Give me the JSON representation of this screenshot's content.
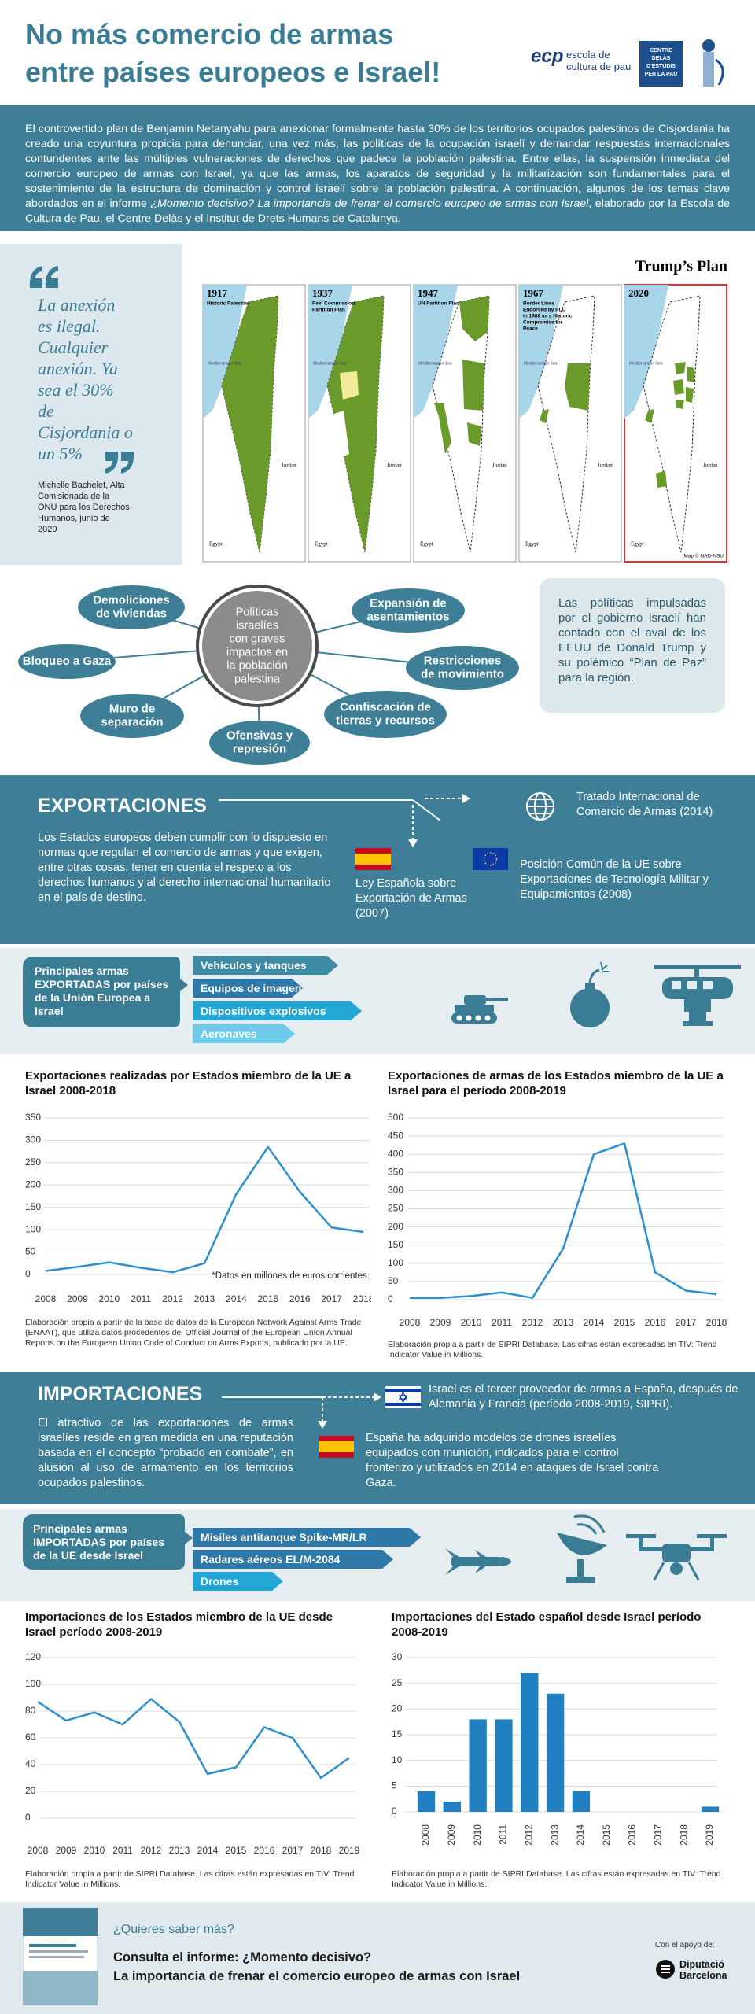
{
  "header": {
    "title_lines": [
      "No más comercio de armas",
      "entre países europeos e Israel!"
    ],
    "ecp": "ecp",
    "ecp_name": [
      "escola de",
      "cultura de pau"
    ],
    "delas": [
      "CENTRE DELÀS",
      "D'ESTUDIS",
      "PER LA PAU"
    ]
  },
  "intro": {
    "text_1": "El controvertido plan de Benjamin Netanyahu para anexionar formalmente hasta 30% de los territorios ocupados palestinos de Cisjordania ha creado una coyuntura propicia para denunciar, una vez más, las políticas de la ocupación israelí y demandar respuestas internacionales contundentes ante las múltiples vulneraciones de derechos que padece la población palestina. Entre ellas, la suspensión inmediata del comercio europeo de armas con Israel, ya que las armas, los aparatos de seguridad y la militarización son fundamentales para el sostenimiento de la estructura de dominación y control israelí sobre la población palestina. A continuación, algunos de los temas clave abordados en el informe ",
    "report": "¿Momento decisivo? La importancia de frenar el comercio europeo de armas con Israel",
    "text_2": ", elaborado por la Escola de Cultura de Pau, el Centre Delàs y el Institut de Drets Humans de Catalunya."
  },
  "quote": {
    "text": "La anexión es ilegal. Cualquier anexión. Ya sea el 30% de Cisjordania o un 5%",
    "author": "Michelle Bachelet, Alta Comisionada de la ONU para los Derechos Humanos, junio de 2020"
  },
  "maps": {
    "title": "Trump’s Plan",
    "panels": [
      {
        "year": "1917",
        "caption": [
          "Historic Palestine"
        ]
      },
      {
        "year": "1937",
        "caption": [
          "Peel Commission",
          "Partition Plan"
        ]
      },
      {
        "year": "1947",
        "caption": [
          "UN Partition Plan"
        ]
      },
      {
        "year": "1967",
        "caption": [
          "Border Lines",
          "Endorsed by PLO",
          "in 1988 as a Historic",
          "Compromise for",
          "Peace"
        ]
      },
      {
        "year": "2020",
        "caption": []
      }
    ],
    "labels": {
      "sea": "Mediterranean Sea",
      "jordan": "Jordan",
      "egypt": "Egypt"
    },
    "credit": "Map © NAD-NSU"
  },
  "policies": {
    "center": [
      "Políticas",
      "israelíes",
      "con graves",
      "impactos en",
      "la población",
      "palestina"
    ],
    "items": [
      [
        "Demoliciones",
        "de viviendas"
      ],
      [
        "Bloqueo a Gaza"
      ],
      [
        "Muro de",
        "separación"
      ],
      [
        "Ofensivas y",
        "represión"
      ],
      [
        "Confiscación de",
        "tierras y recursos"
      ],
      [
        "Restricciones",
        "de movimiento"
      ],
      [
        "Expansión de",
        "asentamientos"
      ]
    ],
    "note": "Las políticas impulsadas por el gobierno israelí han contado con el aval de los EEUU de Donald Trump y su polémico “Plan de Paz” para la región."
  },
  "exports": {
    "heading": "EXPORTACIONES",
    "text": "Los Estados europeos deben cumplir con lo dispuesto en normas que regulan el comercio de armas y que exigen, entre otras cosas, tener en cuenta el respeto a los derechos humanos y al derecho internacional humanitario en el país de destino.",
    "treaty": "Tratado Internacional de Comercio de Armas (2014)",
    "eu": "Posición Común de la UE sobre Exportaciones de Tecnología Militar y Equipamientos (2008)",
    "spain": "Ley Española sobre Exportación de Armas (2007)"
  },
  "exported_arms": {
    "label": "Principales armas EXPORTADAS por países de la Unión Europea a Israel",
    "items": [
      "Vehículos y tanques",
      "Equipos de imagen",
      "Dispositivos explosivos",
      "Aeronaves"
    ]
  },
  "imports": {
    "heading": "IMPORTACIONES",
    "text": "El atractivo de las exportaciones de armas israelíes reside en gran medida en una reputación basada en el concepto “probado en combate”, en alusión al uso de armamento en los territorios ocupados palestinos.",
    "fact_1": "Israel es el tercer proveedor de armas a España, después de Alemania y Francia (período 2008-2019, SIPRI).",
    "fact_2": "España ha adquirido modelos de drones israelíes equipados con munición, indicados para el control fronterizo y utilizados en 2014 en ataques de Israel contra Gaza."
  },
  "imported_arms": {
    "label": "Principales armas IMPORTADAS por países de la UE desde Israel",
    "items": [
      "Misiles antitanque Spike-MR/LR",
      "Radares aéreos EL/M-2084",
      "Drones"
    ]
  },
  "chart_data": [
    {
      "type": "line",
      "title": "Exportaciones  realizadas por Estados miembro de la UE a Israel 2008-2018",
      "categories": [
        "2008",
        "2009",
        "2010",
        "2011",
        "2012",
        "2013",
        "2014",
        "2015",
        "2016",
        "2017",
        "2018"
      ],
      "values": [
        8,
        17,
        27,
        15,
        5,
        25,
        180,
        285,
        185,
        105,
        95
      ],
      "color": "#2b8fd0",
      "ylim": [
        0,
        350
      ],
      "yticks": [
        0,
        50,
        100,
        150,
        200,
        250,
        300,
        350
      ],
      "grid": true,
      "annotation": "*Datos en millones de euros corrientes.",
      "note": "Elaboración propia a partir de la base de datos de la European Network Against Arms Trade (ENAAT), que utiliza datos procedentes del Official Journal of the European Union Annual Reports on the European Union Code of Conduct on Arms Exports, publicado por la UE."
    },
    {
      "type": "line",
      "title": "Exportaciones de armas de los Estados miembro de la UE a Israel para el período 2008-2019",
      "categories": [
        "2008",
        "2009",
        "2010",
        "2011",
        "2012",
        "2013",
        "2014",
        "2015",
        "2016",
        "2017",
        "2018"
      ],
      "values": [
        5,
        5,
        10,
        20,
        5,
        140,
        400,
        430,
        75,
        25,
        15
      ],
      "color": "#2b8fd0",
      "ylim": [
        0,
        500
      ],
      "yticks": [
        0,
        50,
        100,
        150,
        200,
        250,
        300,
        350,
        400,
        450,
        500
      ],
      "grid": true,
      "note": "Elaboración propia a partir de SIPRI Database. Las cifras están expresadas en TIV: Trend Indicator Value in Millions."
    },
    {
      "type": "line",
      "title": "Importaciones de los Estados miembro de la UE desde Israel período 2008-2019",
      "categories": [
        "2008",
        "2009",
        "2010",
        "2011",
        "2012",
        "2013",
        "2014",
        "2015",
        "2016",
        "2017",
        "2018",
        "2019"
      ],
      "values": [
        87,
        73,
        79,
        70,
        89,
        72,
        33,
        38,
        68,
        60,
        30,
        45
      ],
      "color": "#2b8fd0",
      "ylim": [
        0,
        120
      ],
      "yticks": [
        0,
        20,
        40,
        60,
        80,
        100,
        120
      ],
      "grid": true,
      "note": "Elaboración propia a partir de SIPRI Database. Las cifras están expresadas en TIV: Trend Indicator Value in Millions."
    },
    {
      "type": "bar",
      "title": "Importaciones del Estado español desde Israel período 2008-2019",
      "categories": [
        "2008",
        "2009",
        "2010",
        "2011",
        "2012",
        "2013",
        "2014",
        "2015",
        "2016",
        "2017",
        "2018",
        "2019"
      ],
      "values": [
        4,
        2,
        18,
        18,
        27,
        23,
        4,
        0,
        0,
        0,
        0,
        1
      ],
      "color": "#1f7fc1",
      "ylim": [
        0,
        30
      ],
      "yticks": [
        0,
        5,
        10,
        15,
        20,
        25,
        30
      ],
      "grid": true,
      "note": "Elaboración propia a partir de SIPRI Database. Las cifras están expresadas en TIV: Trend Indicator Value in Millions."
    }
  ],
  "footer": {
    "question": "¿Quieres saber más?",
    "report_lines": [
      "Consulta el informe: ¿Momento decisivo?",
      "La importancia de frenar el comercio europeo de armas con Israel"
    ],
    "support": "Con el apoyo de:",
    "sponsor": [
      "Diputació",
      "Barcelona"
    ]
  }
}
